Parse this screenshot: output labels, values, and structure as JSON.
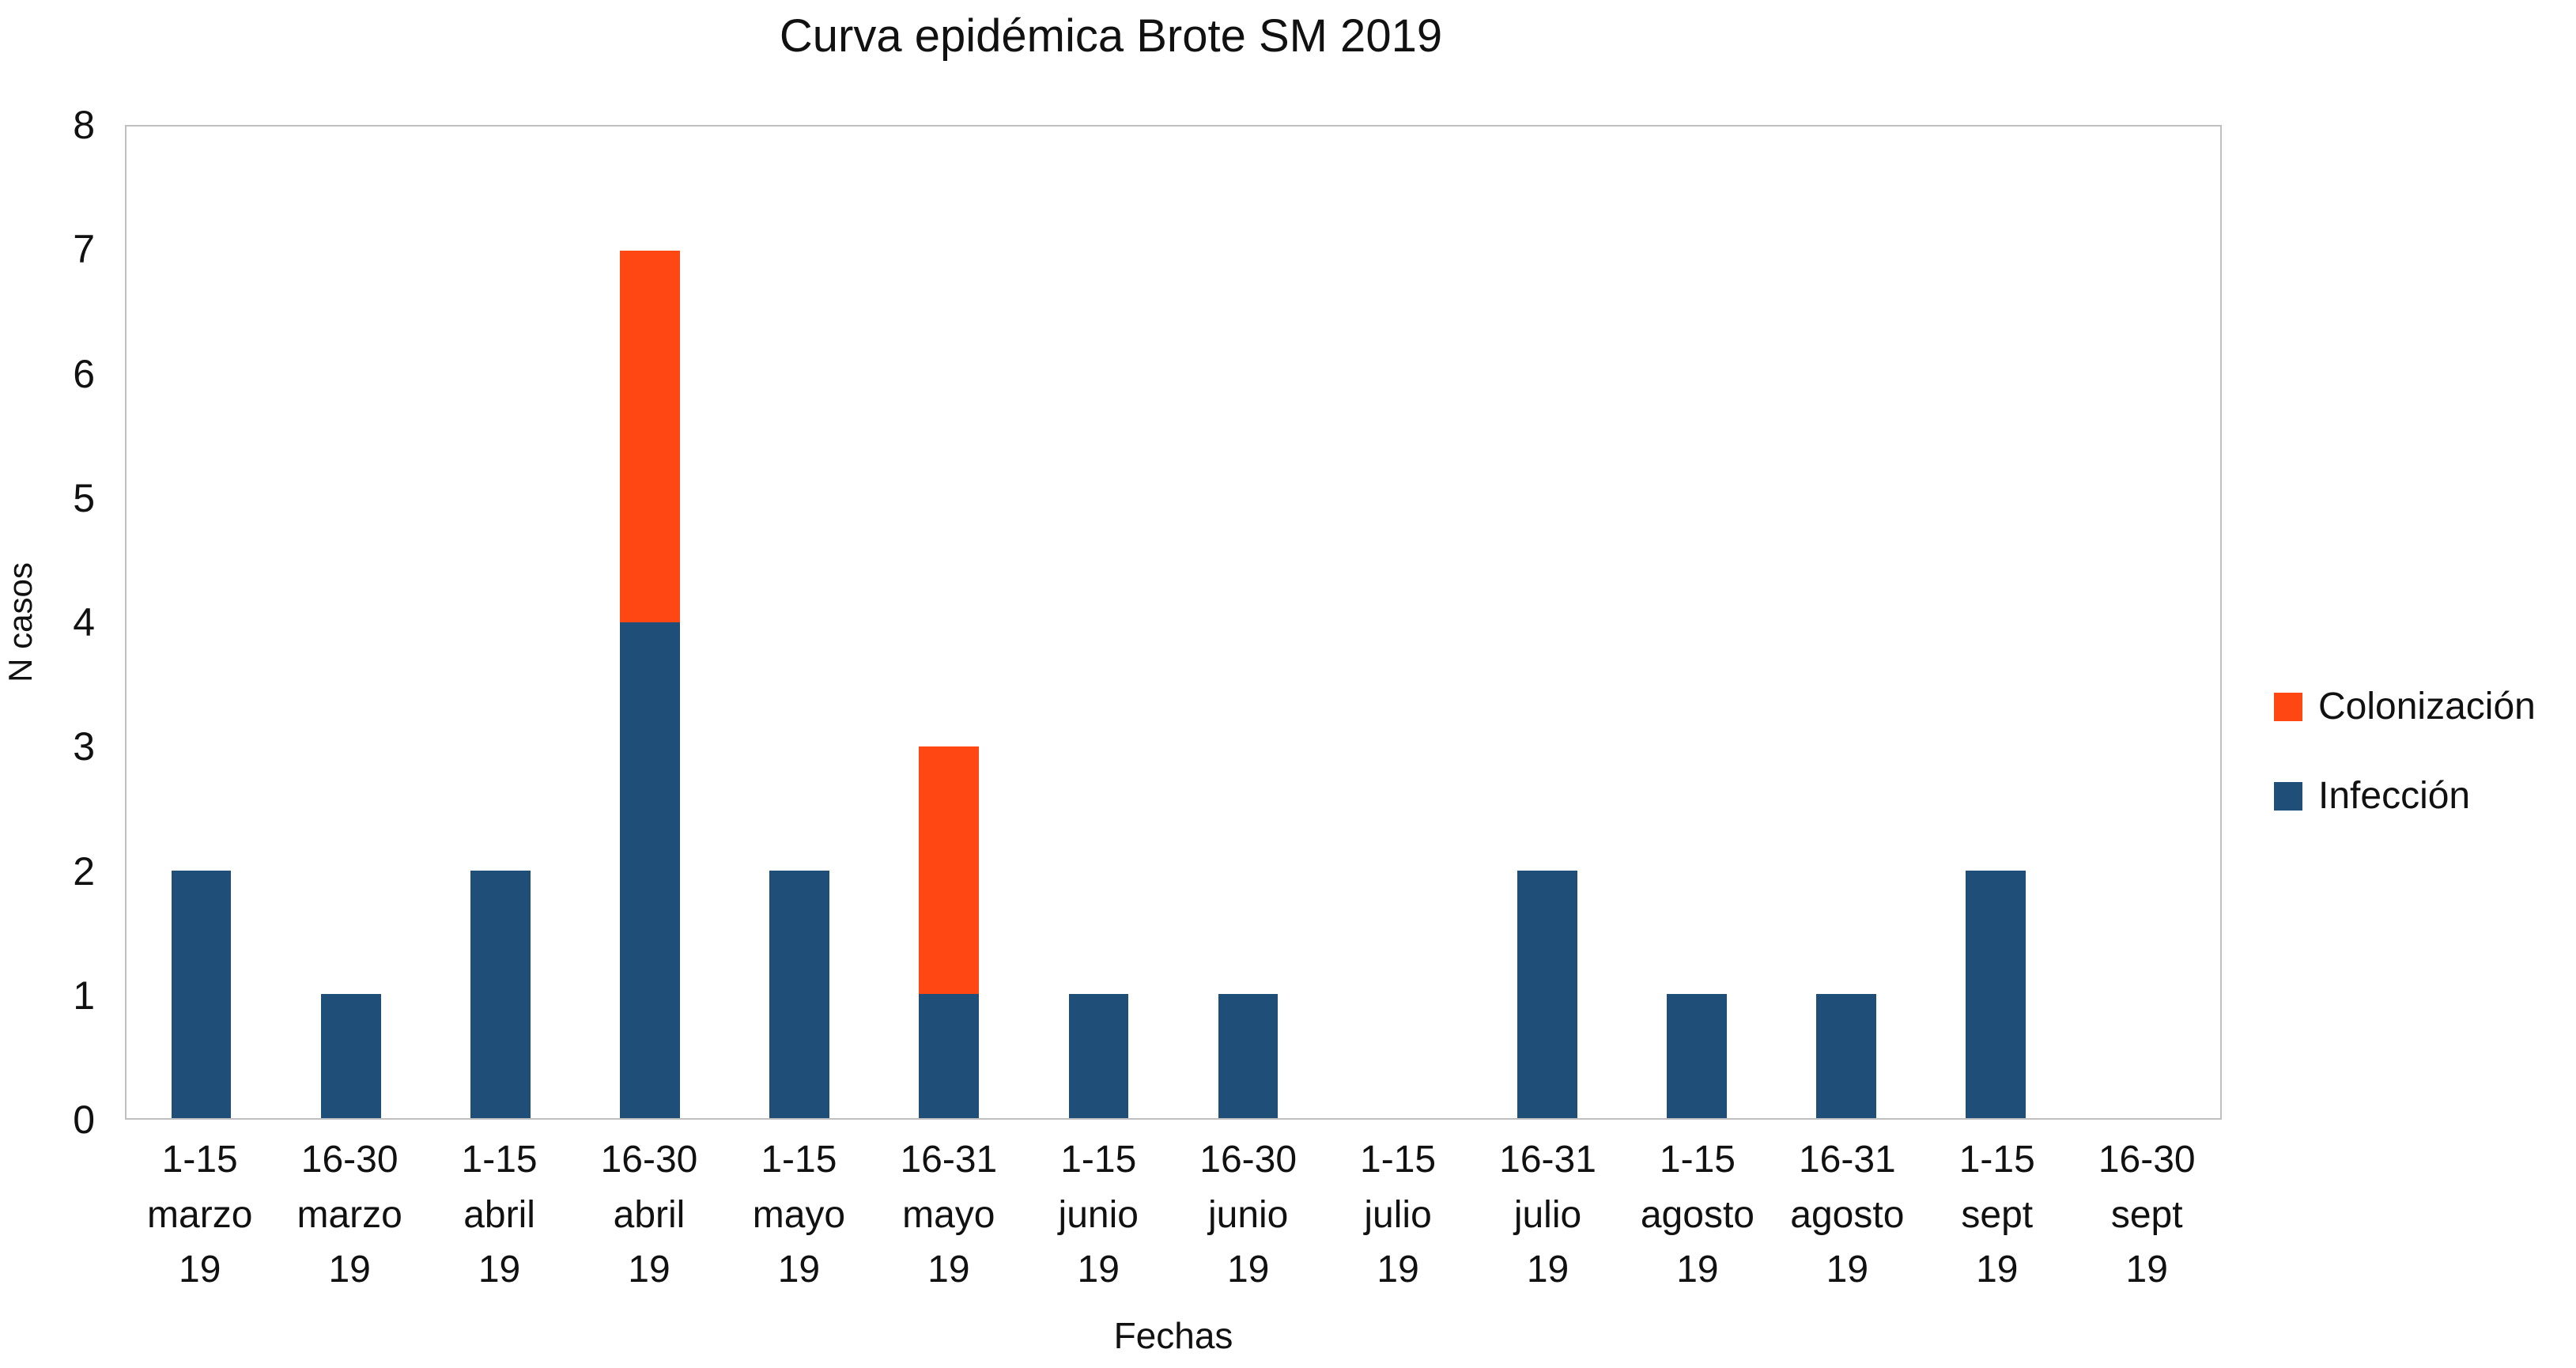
{
  "chart_data": {
    "type": "bar",
    "stacked": true,
    "title": "Curva epidémica Brote SM 2019",
    "xlabel": "Fechas",
    "ylabel": "N casos",
    "ylim": [
      0,
      8
    ],
    "y_ticks": [
      0,
      1,
      2,
      3,
      4,
      5,
      6,
      7,
      8
    ],
    "grid": false,
    "legend_position": "right",
    "categories": [
      "1-15\nmarzo\n19",
      "16-30\nmarzo\n19",
      "1-15\nabril\n19",
      "16-30\nabril\n19",
      "1-15\nmayo\n19",
      "16-31\nmayo\n19",
      "1-15\njunio\n19",
      "16-30\njunio\n19",
      "1-15\njulio\n19",
      "16-31\njulio\n19",
      "1-15\nagosto\n19",
      "16-31\nagosto\n19",
      "1-15\nsept\n19",
      "16-30\nsept\n19"
    ],
    "series": [
      {
        "name": "Infección",
        "color": "#1F4E79",
        "values": [
          2,
          1,
          2,
          4,
          2,
          1,
          1,
          1,
          0,
          2,
          1,
          1,
          2,
          0
        ]
      },
      {
        "name": "Colonización",
        "color": "#FF4713",
        "values": [
          0,
          0,
          0,
          3,
          0,
          2,
          0,
          0,
          0,
          0,
          0,
          0,
          0,
          0
        ]
      }
    ],
    "legend": [
      {
        "label": "Colonización",
        "color": "#FF4713"
      },
      {
        "label": "Infección",
        "color": "#1F4E79"
      }
    ]
  }
}
